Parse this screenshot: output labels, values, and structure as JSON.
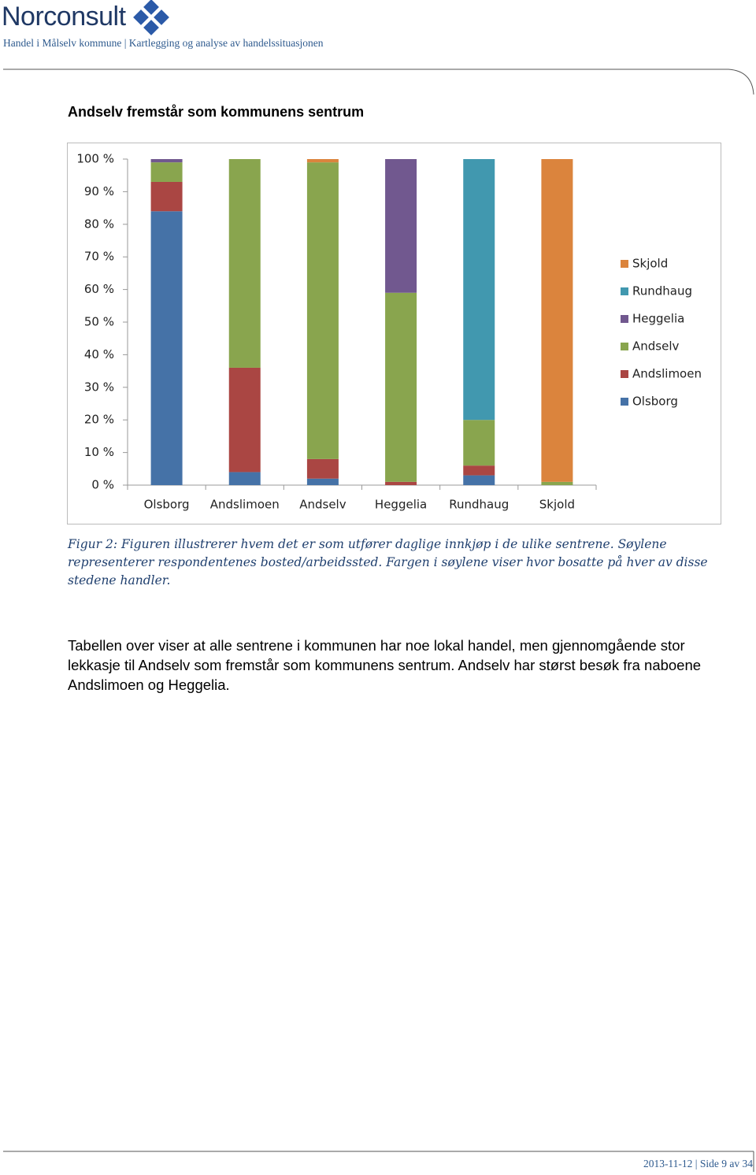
{
  "header": {
    "logo": "Norconsult",
    "subtitle": "Handel i Målselv kommune | Kartlegging og analyse av handelssituasjonen"
  },
  "heading": "Andselv fremstår som kommunens sentrum",
  "chart_data": {
    "type": "stacked_bar",
    "categories": [
      "Olsborg",
      "Andslimoen",
      "Andselv",
      "Heggelia",
      "Rundhaug",
      "Skjold"
    ],
    "series": [
      {
        "name": "Olsborg",
        "color": "#4572a7",
        "values": [
          84,
          4,
          2,
          0,
          3,
          0
        ]
      },
      {
        "name": "Andslimoen",
        "color": "#aa4643",
        "values": [
          9,
          32,
          6,
          1,
          3,
          0
        ]
      },
      {
        "name": "Andselv",
        "color": "#89a54e",
        "values": [
          6,
          64,
          91,
          58,
          14,
          1
        ]
      },
      {
        "name": "Heggelia",
        "color": "#71588f",
        "values": [
          1,
          0,
          0,
          41,
          0,
          0
        ]
      },
      {
        "name": "Rundhaug",
        "color": "#4198af",
        "values": [
          0,
          0,
          0,
          0,
          80,
          0
        ]
      },
      {
        "name": "Skjold",
        "color": "#db843d",
        "values": [
          0,
          0,
          1,
          0,
          0,
          99
        ]
      }
    ],
    "ylim": [
      0,
      100
    ],
    "yticks": [
      {
        "value": 0,
        "label": "0 %"
      },
      {
        "value": 10,
        "label": "10 %"
      },
      {
        "value": 20,
        "label": "20 %"
      },
      {
        "value": 30,
        "label": "30 %"
      },
      {
        "value": 40,
        "label": "40 %"
      },
      {
        "value": 50,
        "label": "50 %"
      },
      {
        "value": 60,
        "label": "60 %"
      },
      {
        "value": 70,
        "label": "70 %"
      },
      {
        "value": 80,
        "label": "80 %"
      },
      {
        "value": 90,
        "label": "90 %"
      },
      {
        "value": 100,
        "label": "100 %"
      }
    ],
    "legend": "right"
  },
  "caption": "Figur 2: Figuren illustrerer hvem det er som utfører daglige innkjøp i de ulike sentrene. Søylene representerer respondentenes bosted/arbeidssted. Fargen i søylene viser hvor bosatte på hver av disse stedene handler.",
  "paragraph": "Tabellen over viser at alle sentrene i kommunen har noe lokal handel, men gjennomgående stor lekkasje til Andselv som fremstår som kommunens sentrum. Andselv har størst besøk fra naboene Andslimoen og Heggelia.",
  "footer": "2013-11-12 | Side 9 av 34"
}
